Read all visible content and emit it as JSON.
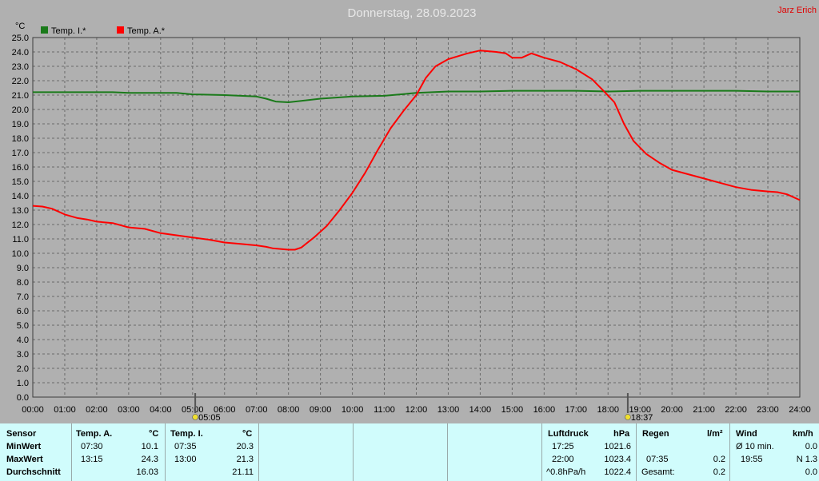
{
  "title": "Donnerstag, 28.09.2023",
  "author": "Jarz Erich",
  "colors": {
    "background": "#b0b0b0",
    "panel": "#d0fcfc",
    "inside": "#1a7a1a",
    "outside": "#ff0000",
    "title": "#e8e8e8",
    "author": "#e00000"
  },
  "chart_data": {
    "type": "line",
    "title": "Donnerstag, 28.09.2023",
    "ylabel": "°C",
    "xlabel": "",
    "ylim": [
      0,
      25
    ],
    "xlim": [
      0,
      24
    ],
    "grid": true,
    "legend_position": "top-left",
    "x_ticks": [
      "00:00",
      "01:00",
      "02:00",
      "03:00",
      "04:00",
      "05:00",
      "06:00",
      "07:00",
      "08:00",
      "09:00",
      "10:00",
      "11:00",
      "12:00",
      "13:00",
      "14:00",
      "15:00",
      "16:00",
      "17:00",
      "18:00",
      "19:00",
      "20:00",
      "21:00",
      "22:00",
      "23:00",
      "24:00"
    ],
    "y_ticks": [
      "0.0",
      "1.0",
      "2.0",
      "3.0",
      "4.0",
      "5.0",
      "6.0",
      "7.0",
      "8.0",
      "9.0",
      "10.0",
      "11.0",
      "12.0",
      "13.0",
      "14.0",
      "15.0",
      "16.0",
      "17.0",
      "18.0",
      "19.0",
      "20.0",
      "21.0",
      "22.0",
      "23.0",
      "24.0",
      "25.0"
    ],
    "markers": [
      {
        "x": 5.083,
        "label": "05:05",
        "icon": "sunrise-icon"
      },
      {
        "x": 18.617,
        "label": "18:37",
        "icon": "sunset-icon"
      }
    ],
    "series": [
      {
        "name": "Temp. I.*",
        "color": "#1a7a1a",
        "points": [
          [
            0,
            21.2
          ],
          [
            2.5,
            21.2
          ],
          [
            3,
            21.15
          ],
          [
            4.5,
            21.15
          ],
          [
            5,
            21.05
          ],
          [
            6,
            21.0
          ],
          [
            6.5,
            20.95
          ],
          [
            7,
            20.9
          ],
          [
            7.3,
            20.75
          ],
          [
            7.6,
            20.55
          ],
          [
            8,
            20.5
          ],
          [
            8.4,
            20.6
          ],
          [
            9,
            20.75
          ],
          [
            10,
            20.9
          ],
          [
            11,
            20.95
          ],
          [
            12,
            21.15
          ],
          [
            13,
            21.25
          ],
          [
            14,
            21.25
          ],
          [
            15,
            21.3
          ],
          [
            17,
            21.3
          ],
          [
            18,
            21.25
          ],
          [
            19,
            21.3
          ],
          [
            22,
            21.3
          ],
          [
            23,
            21.25
          ],
          [
            24,
            21.25
          ]
        ]
      },
      {
        "name": "Temp. A.*",
        "color": "#ff0000",
        "points": [
          [
            0,
            13.3
          ],
          [
            0.3,
            13.25
          ],
          [
            0.6,
            13.1
          ],
          [
            1,
            12.7
          ],
          [
            1.4,
            12.45
          ],
          [
            1.7,
            12.35
          ],
          [
            2,
            12.2
          ],
          [
            2.5,
            12.1
          ],
          [
            3,
            11.8
          ],
          [
            3.5,
            11.7
          ],
          [
            4,
            11.4
          ],
          [
            4.5,
            11.25
          ],
          [
            5,
            11.1
          ],
          [
            5.5,
            10.95
          ],
          [
            6,
            10.75
          ],
          [
            6.5,
            10.65
          ],
          [
            7,
            10.55
          ],
          [
            7.3,
            10.45
          ],
          [
            7.5,
            10.35
          ],
          [
            8,
            10.25
          ],
          [
            8.2,
            10.25
          ],
          [
            8.4,
            10.4
          ],
          [
            8.8,
            11.1
          ],
          [
            9.2,
            11.9
          ],
          [
            9.6,
            13.0
          ],
          [
            10,
            14.2
          ],
          [
            10.4,
            15.6
          ],
          [
            10.8,
            17.2
          ],
          [
            11.2,
            18.7
          ],
          [
            11.6,
            19.9
          ],
          [
            12,
            21.0
          ],
          [
            12.3,
            22.2
          ],
          [
            12.6,
            23.0
          ],
          [
            13,
            23.5
          ],
          [
            13.3,
            23.7
          ],
          [
            13.6,
            23.9
          ],
          [
            14,
            24.1
          ],
          [
            14.5,
            24.0
          ],
          [
            14.8,
            23.9
          ],
          [
            15,
            23.6
          ],
          [
            15.3,
            23.6
          ],
          [
            15.6,
            23.9
          ],
          [
            16,
            23.6
          ],
          [
            16.5,
            23.3
          ],
          [
            17,
            22.8
          ],
          [
            17.5,
            22.1
          ],
          [
            17.9,
            21.2
          ],
          [
            18.2,
            20.5
          ],
          [
            18.5,
            19.0
          ],
          [
            18.8,
            17.8
          ],
          [
            19.2,
            16.9
          ],
          [
            19.6,
            16.3
          ],
          [
            20,
            15.8
          ],
          [
            20.5,
            15.5
          ],
          [
            21,
            15.2
          ],
          [
            21.5,
            14.9
          ],
          [
            22,
            14.6
          ],
          [
            22.5,
            14.4
          ],
          [
            23,
            14.3
          ],
          [
            23.3,
            14.25
          ],
          [
            23.6,
            14.1
          ],
          [
            24,
            13.7
          ]
        ]
      }
    ]
  },
  "panel": {
    "sensor": {
      "header": "Sensor",
      "rows": [
        "MinWert",
        "MaxWert",
        "Durchschnitt"
      ]
    },
    "temp_a": {
      "name": "Temp. A.",
      "unit": "°C",
      "min_time": "07:30",
      "min_val": "10.1",
      "max_time": "13:15",
      "max_val": "24.3",
      "avg": "16.03"
    },
    "temp_i": {
      "name": "Temp. I.",
      "unit": "°C",
      "min_time": "07:35",
      "min_val": "20.3",
      "max_time": "13:00",
      "max_val": "21.3",
      "avg": "21.11"
    },
    "pressure": {
      "name": "Luftdruck",
      "unit": "hPa",
      "min_time": "17:25",
      "min_val": "1021.6",
      "max_time": "22:00",
      "max_val": "1023.4",
      "trend": "^0.8hPa/h",
      "current": "1022.4"
    },
    "rain": {
      "name": "Regen",
      "unit": "l/m²",
      "time": "07:35",
      "val": "0.2",
      "total_label": "Gesamt:",
      "total": "0.2"
    },
    "wind": {
      "name": "Wind",
      "unit": "km/h",
      "avg_label": "Ø 10 min.",
      "avg_val": "0.0",
      "max_time": "19:55",
      "max_val": "N 1.3",
      "current": "0.0"
    }
  }
}
